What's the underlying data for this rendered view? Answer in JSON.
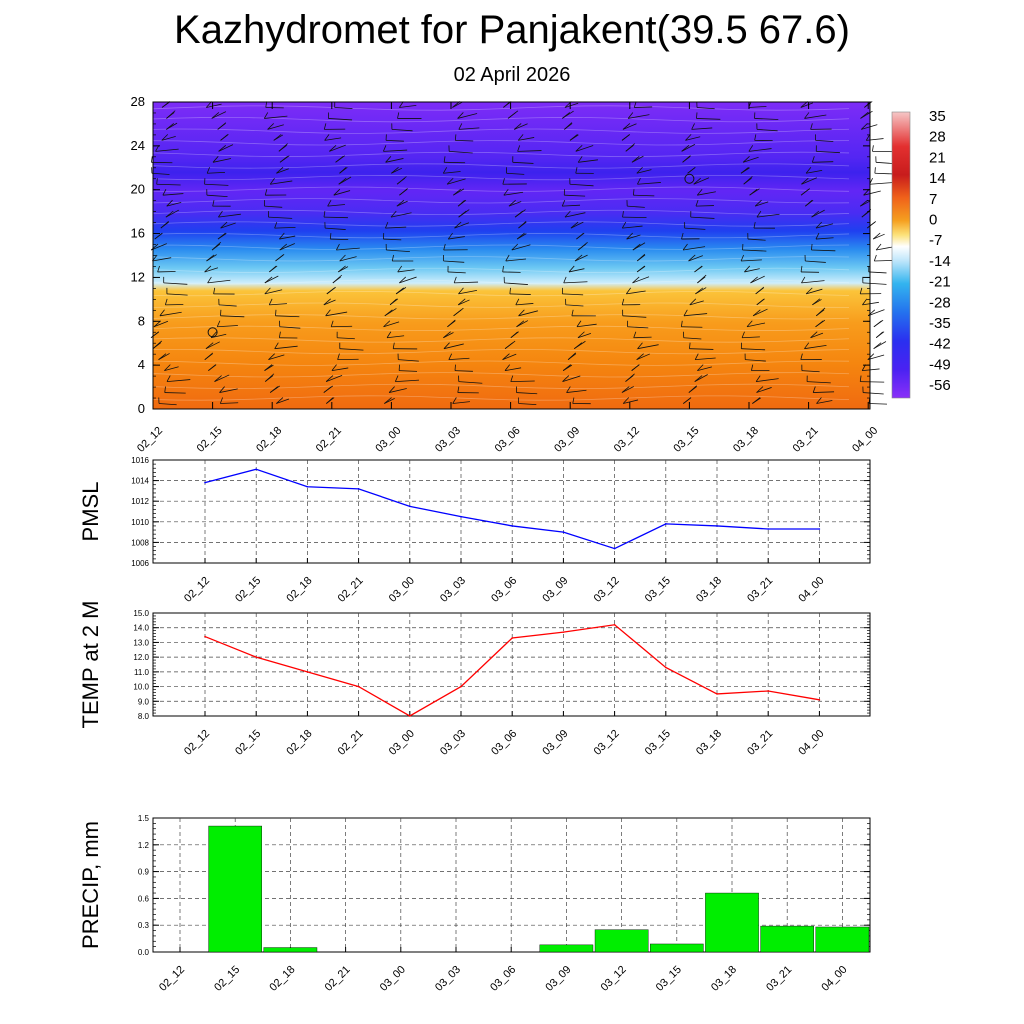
{
  "title": "Kazhydromet for Panjakent(39.5 67.6)",
  "subtitle": "02 April 2026",
  "time_labels": [
    "02_12",
    "02_15",
    "02_18",
    "02_21",
    "03_00",
    "03_03",
    "03_06",
    "03_09",
    "03_12",
    "03_15",
    "03_18",
    "03_21",
    "04_00"
  ],
  "colors": {
    "pmsl_line": "#0000ff",
    "temp_line": "#ff0000",
    "precip_bar": "#00ee00",
    "grid": "#333333"
  },
  "chart_data": [
    {
      "type": "heatmap",
      "name": "vertical-cross-section",
      "xlabel": "",
      "ylabel": "",
      "ylim": [
        0,
        28
      ],
      "y_ticks": [
        0,
        4,
        8,
        12,
        16,
        20,
        24,
        28
      ],
      "categories": [
        "02_12",
        "02_15",
        "02_18",
        "02_21",
        "03_00",
        "03_03",
        "03_06",
        "03_09",
        "03_12",
        "03_15",
        "03_18",
        "03_21",
        "04_00"
      ],
      "colorbar_labels": [
        "35",
        "28",
        "21",
        "14",
        "7",
        "0",
        "-7",
        "-14",
        "-21",
        "-28",
        "-35",
        "-42",
        "-49",
        "-56"
      ],
      "temperature_profile": {
        "levels": [
          0,
          4,
          8,
          11.5,
          12,
          14,
          16,
          18,
          20,
          22,
          24,
          28
        ],
        "values": [
          14,
          10,
          7,
          -7,
          -14,
          -28,
          -42,
          -56,
          -60,
          -65,
          -58,
          -56
        ]
      },
      "wind_barbs": true,
      "calm_markers": [
        {
          "x": "02_15",
          "y": 7
        },
        {
          "x": "03_15",
          "y": 21
        }
      ]
    },
    {
      "type": "line",
      "name": "pmsl",
      "ylabel": "PMSL",
      "categories": [
        "02_12",
        "02_15",
        "02_18",
        "02_21",
        "03_00",
        "03_03",
        "03_06",
        "03_09",
        "03_12",
        "03_15",
        "03_18",
        "03_21",
        "04_00"
      ],
      "values": [
        1013.8,
        1015.1,
        1013.4,
        1013.2,
        1011.5,
        1010.5,
        1009.6,
        1009.0,
        1007.4,
        1009.8,
        1009.6,
        1009.3,
        1009.3
      ],
      "ylim": [
        1006,
        1016
      ],
      "y_ticks": [
        1006,
        1008,
        1010,
        1012,
        1014,
        1016
      ]
    },
    {
      "type": "line",
      "name": "temp2m",
      "ylabel": "TEMP at 2 M",
      "categories": [
        "02_12",
        "02_15",
        "02_18",
        "02_21",
        "03_00",
        "03_03",
        "03_06",
        "03_09",
        "03_12",
        "03_15",
        "03_18",
        "03_21",
        "04_00"
      ],
      "values": [
        13.4,
        12.0,
        11.0,
        10.0,
        8.0,
        10.0,
        13.3,
        13.7,
        14.2,
        11.3,
        9.5,
        9.7,
        9.1
      ],
      "ylim": [
        8.0,
        15.0
      ],
      "y_ticks": [
        "8.0",
        "9.0",
        "10.0",
        "11.0",
        "12.0",
        "13.0",
        "14.0",
        "15.0"
      ]
    },
    {
      "type": "bar",
      "name": "precip",
      "ylabel": "PRECIP, mm",
      "categories": [
        "02_12",
        "02_15",
        "02_18",
        "02_21",
        "03_00",
        "03_03",
        "03_06",
        "03_09",
        "03_12",
        "03_15",
        "03_18",
        "03_21",
        "04_00"
      ],
      "values": [
        0,
        1.41,
        0.05,
        0,
        0,
        0,
        0,
        0.08,
        0.25,
        0.09,
        0.66,
        0.29,
        0.28
      ],
      "ylim": [
        0,
        1.5
      ],
      "y_ticks": [
        "0.0",
        "0.3",
        "0.6",
        "0.9",
        "1.2",
        "1.5"
      ]
    }
  ]
}
